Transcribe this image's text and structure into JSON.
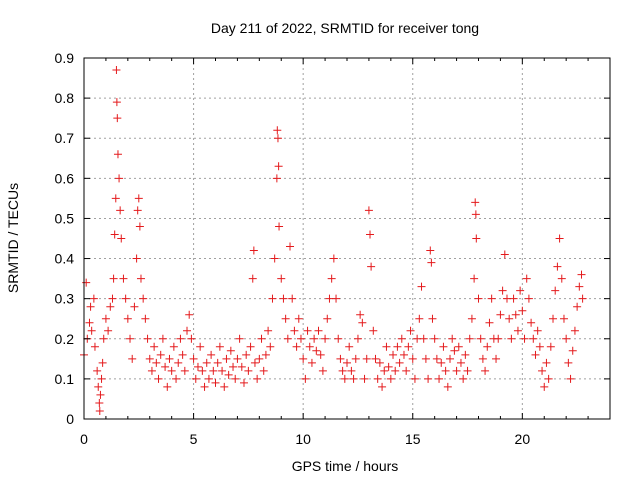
{
  "chart_data": {
    "type": "scatter",
    "title": "Day 211 of 2022, SRMTID for receiver tong",
    "xlabel": "GPS time / hours",
    "ylabel": "SRMTID / TECUs",
    "xlim": [
      0,
      24
    ],
    "ylim": [
      0,
      0.9
    ],
    "x_ticks": [
      0,
      5,
      10,
      15,
      20
    ],
    "y_ticks": [
      0,
      0.1,
      0.2,
      0.3,
      0.4,
      0.5,
      0.6,
      0.7,
      0.8,
      0.9
    ],
    "x_tick_labels": [
      "0",
      "5",
      "10",
      "15",
      "20"
    ],
    "y_tick_labels": [
      "0",
      "0.1",
      "0.2",
      "0.3",
      "0.4",
      "0.5",
      "0.6",
      "0.7",
      "0.8",
      "0.9"
    ],
    "grid": true,
    "marker": "+",
    "color": "#e41a1c",
    "series": [
      {
        "name": "SRMTID",
        "points": [
          [
            0.0,
            0.16
          ],
          [
            0.1,
            0.34
          ],
          [
            0.15,
            0.2
          ],
          [
            0.25,
            0.24
          ],
          [
            0.3,
            0.28
          ],
          [
            0.35,
            0.22
          ],
          [
            0.45,
            0.3
          ],
          [
            0.5,
            0.18
          ],
          [
            0.6,
            0.12
          ],
          [
            0.65,
            0.08
          ],
          [
            0.7,
            0.04
          ],
          [
            0.72,
            0.02
          ],
          [
            0.75,
            0.06
          ],
          [
            0.8,
            0.1
          ],
          [
            0.85,
            0.14
          ],
          [
            0.9,
            0.2
          ],
          [
            1.0,
            0.25
          ],
          [
            1.1,
            0.22
          ],
          [
            1.2,
            0.28
          ],
          [
            1.3,
            0.3
          ],
          [
            1.35,
            0.35
          ],
          [
            1.4,
            0.46
          ],
          [
            1.45,
            0.55
          ],
          [
            1.48,
            0.87
          ],
          [
            1.5,
            0.79
          ],
          [
            1.52,
            0.75
          ],
          [
            1.55,
            0.66
          ],
          [
            1.6,
            0.6
          ],
          [
            1.65,
            0.52
          ],
          [
            1.7,
            0.45
          ],
          [
            1.8,
            0.35
          ],
          [
            1.9,
            0.3
          ],
          [
            2.0,
            0.25
          ],
          [
            2.1,
            0.2
          ],
          [
            2.2,
            0.15
          ],
          [
            2.3,
            0.28
          ],
          [
            2.4,
            0.4
          ],
          [
            2.45,
            0.52
          ],
          [
            2.5,
            0.55
          ],
          [
            2.55,
            0.48
          ],
          [
            2.6,
            0.35
          ],
          [
            2.7,
            0.3
          ],
          [
            2.8,
            0.25
          ],
          [
            2.9,
            0.2
          ],
          [
            3.0,
            0.15
          ],
          [
            3.1,
            0.12
          ],
          [
            3.2,
            0.18
          ],
          [
            3.3,
            0.14
          ],
          [
            3.4,
            0.1
          ],
          [
            3.5,
            0.16
          ],
          [
            3.6,
            0.2
          ],
          [
            3.7,
            0.13
          ],
          [
            3.8,
            0.08
          ],
          [
            3.9,
            0.15
          ],
          [
            4.0,
            0.12
          ],
          [
            4.1,
            0.18
          ],
          [
            4.2,
            0.1
          ],
          [
            4.3,
            0.14
          ],
          [
            4.4,
            0.2
          ],
          [
            4.5,
            0.16
          ],
          [
            4.6,
            0.12
          ],
          [
            4.7,
            0.22
          ],
          [
            4.8,
            0.26
          ],
          [
            4.9,
            0.2
          ],
          [
            5.0,
            0.15
          ],
          [
            5.1,
            0.1
          ],
          [
            5.2,
            0.13
          ],
          [
            5.3,
            0.18
          ],
          [
            5.4,
            0.12
          ],
          [
            5.5,
            0.08
          ],
          [
            5.6,
            0.14
          ],
          [
            5.7,
            0.1
          ],
          [
            5.8,
            0.16
          ],
          [
            5.9,
            0.12
          ],
          [
            6.0,
            0.09
          ],
          [
            6.1,
            0.14
          ],
          [
            6.2,
            0.18
          ],
          [
            6.3,
            0.12
          ],
          [
            6.4,
            0.08
          ],
          [
            6.5,
            0.15
          ],
          [
            6.6,
            0.11
          ],
          [
            6.7,
            0.17
          ],
          [
            6.8,
            0.13
          ],
          [
            6.9,
            0.1
          ],
          [
            7.0,
            0.15
          ],
          [
            7.1,
            0.2
          ],
          [
            7.2,
            0.13
          ],
          [
            7.3,
            0.09
          ],
          [
            7.4,
            0.16
          ],
          [
            7.5,
            0.12
          ],
          [
            7.6,
            0.18
          ],
          [
            7.7,
            0.35
          ],
          [
            7.75,
            0.42
          ],
          [
            7.8,
            0.14
          ],
          [
            7.9,
            0.1
          ],
          [
            8.0,
            0.15
          ],
          [
            8.1,
            0.2
          ],
          [
            8.2,
            0.12
          ],
          [
            8.3,
            0.16
          ],
          [
            8.4,
            0.22
          ],
          [
            8.5,
            0.18
          ],
          [
            8.6,
            0.3
          ],
          [
            8.7,
            0.4
          ],
          [
            8.8,
            0.6
          ],
          [
            8.82,
            0.72
          ],
          [
            8.85,
            0.7
          ],
          [
            8.88,
            0.63
          ],
          [
            8.9,
            0.48
          ],
          [
            9.0,
            0.35
          ],
          [
            9.1,
            0.3
          ],
          [
            9.2,
            0.25
          ],
          [
            9.3,
            0.2
          ],
          [
            9.4,
            0.43
          ],
          [
            9.5,
            0.3
          ],
          [
            9.6,
            0.22
          ],
          [
            9.7,
            0.18
          ],
          [
            9.8,
            0.25
          ],
          [
            9.9,
            0.2
          ],
          [
            10.0,
            0.15
          ],
          [
            10.1,
            0.1
          ],
          [
            10.2,
            0.22
          ],
          [
            10.3,
            0.18
          ],
          [
            10.4,
            0.14
          ],
          [
            10.5,
            0.2
          ],
          [
            10.6,
            0.17
          ],
          [
            10.7,
            0.22
          ],
          [
            10.8,
            0.16
          ],
          [
            10.9,
            0.12
          ],
          [
            11.0,
            0.2
          ],
          [
            11.1,
            0.25
          ],
          [
            11.2,
            0.3
          ],
          [
            11.3,
            0.35
          ],
          [
            11.4,
            0.4
          ],
          [
            11.5,
            0.3
          ],
          [
            11.6,
            0.2
          ],
          [
            11.7,
            0.15
          ],
          [
            11.8,
            0.12
          ],
          [
            11.9,
            0.1
          ],
          [
            12.0,
            0.14
          ],
          [
            12.1,
            0.18
          ],
          [
            12.2,
            0.12
          ],
          [
            12.3,
            0.1
          ],
          [
            12.4,
            0.15
          ],
          [
            12.5,
            0.2
          ],
          [
            12.6,
            0.26
          ],
          [
            12.7,
            0.24
          ],
          [
            12.8,
            0.1
          ],
          [
            12.9,
            0.15
          ],
          [
            13.0,
            0.52
          ],
          [
            13.05,
            0.46
          ],
          [
            13.1,
            0.38
          ],
          [
            13.2,
            0.22
          ],
          [
            13.3,
            0.15
          ],
          [
            13.4,
            0.1
          ],
          [
            13.5,
            0.14
          ],
          [
            13.6,
            0.08
          ],
          [
            13.7,
            0.12
          ],
          [
            13.8,
            0.18
          ],
          [
            13.9,
            0.13
          ],
          [
            14.0,
            0.1
          ],
          [
            14.1,
            0.16
          ],
          [
            14.2,
            0.12
          ],
          [
            14.3,
            0.18
          ],
          [
            14.4,
            0.14
          ],
          [
            14.5,
            0.2
          ],
          [
            14.6,
            0.16
          ],
          [
            14.7,
            0.12
          ],
          [
            14.8,
            0.18
          ],
          [
            14.9,
            0.22
          ],
          [
            15.0,
            0.15
          ],
          [
            15.1,
            0.1
          ],
          [
            15.2,
            0.2
          ],
          [
            15.3,
            0.25
          ],
          [
            15.4,
            0.33
          ],
          [
            15.5,
            0.2
          ],
          [
            15.6,
            0.15
          ],
          [
            15.7,
            0.1
          ],
          [
            15.8,
            0.42
          ],
          [
            15.85,
            0.39
          ],
          [
            15.9,
            0.25
          ],
          [
            16.0,
            0.2
          ],
          [
            16.1,
            0.15
          ],
          [
            16.2,
            0.1
          ],
          [
            16.3,
            0.14
          ],
          [
            16.4,
            0.18
          ],
          [
            16.5,
            0.12
          ],
          [
            16.6,
            0.08
          ],
          [
            16.7,
            0.15
          ],
          [
            16.8,
            0.2
          ],
          [
            16.9,
            0.17
          ],
          [
            17.0,
            0.12
          ],
          [
            17.1,
            0.18
          ],
          [
            17.2,
            0.14
          ],
          [
            17.3,
            0.1
          ],
          [
            17.4,
            0.16
          ],
          [
            17.5,
            0.12
          ],
          [
            17.6,
            0.2
          ],
          [
            17.7,
            0.25
          ],
          [
            17.8,
            0.35
          ],
          [
            17.85,
            0.54
          ],
          [
            17.88,
            0.51
          ],
          [
            17.9,
            0.45
          ],
          [
            18.0,
            0.3
          ],
          [
            18.1,
            0.2
          ],
          [
            18.2,
            0.15
          ],
          [
            18.3,
            0.12
          ],
          [
            18.4,
            0.18
          ],
          [
            18.5,
            0.24
          ],
          [
            18.6,
            0.3
          ],
          [
            18.7,
            0.2
          ],
          [
            18.8,
            0.15
          ],
          [
            18.9,
            0.2
          ],
          [
            19.0,
            0.26
          ],
          [
            19.1,
            0.32
          ],
          [
            19.2,
            0.41
          ],
          [
            19.3,
            0.3
          ],
          [
            19.4,
            0.25
          ],
          [
            19.5,
            0.2
          ],
          [
            19.6,
            0.3
          ],
          [
            19.7,
            0.26
          ],
          [
            19.8,
            0.22
          ],
          [
            19.9,
            0.32
          ],
          [
            20.0,
            0.27
          ],
          [
            20.1,
            0.2
          ],
          [
            20.2,
            0.35
          ],
          [
            20.3,
            0.3
          ],
          [
            20.4,
            0.24
          ],
          [
            20.5,
            0.2
          ],
          [
            20.6,
            0.16
          ],
          [
            20.7,
            0.22
          ],
          [
            20.8,
            0.18
          ],
          [
            20.9,
            0.12
          ],
          [
            21.0,
            0.08
          ],
          [
            21.1,
            0.14
          ],
          [
            21.2,
            0.1
          ],
          [
            21.3,
            0.18
          ],
          [
            21.4,
            0.25
          ],
          [
            21.5,
            0.32
          ],
          [
            21.6,
            0.38
          ],
          [
            21.7,
            0.45
          ],
          [
            21.8,
            0.35
          ],
          [
            21.9,
            0.25
          ],
          [
            22.0,
            0.2
          ],
          [
            22.1,
            0.14
          ],
          [
            22.2,
            0.1
          ],
          [
            22.3,
            0.17
          ],
          [
            22.4,
            0.22
          ],
          [
            22.5,
            0.28
          ],
          [
            22.6,
            0.33
          ],
          [
            22.7,
            0.36
          ],
          [
            22.75,
            0.3
          ]
        ]
      }
    ]
  }
}
